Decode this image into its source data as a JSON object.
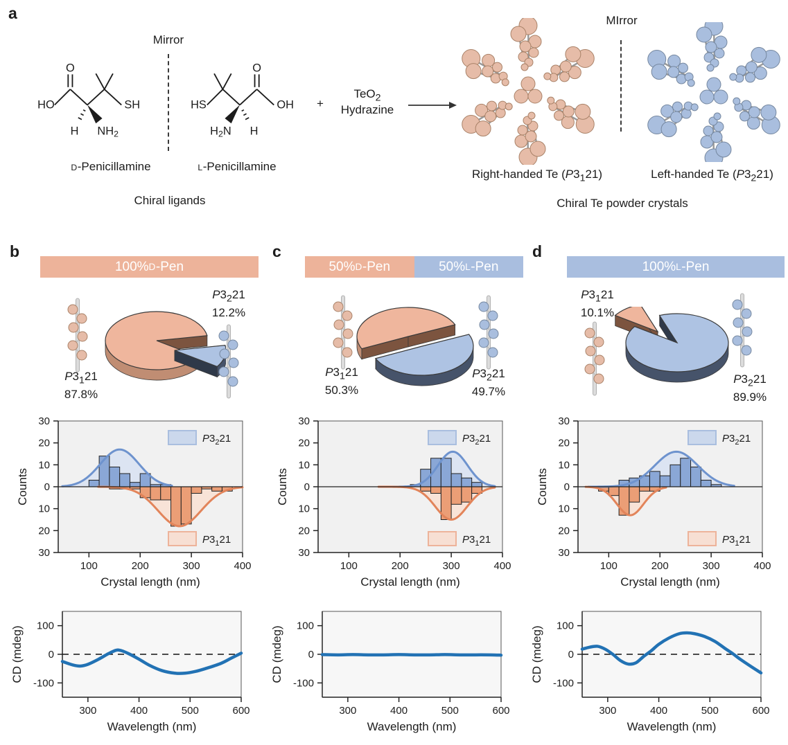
{
  "figure": {
    "colors": {
      "salmon": "#edb39a",
      "blue": "#a9bedf",
      "pie_salmon_top": "#efb69d",
      "pie_salmon_side": "#c08d73",
      "pie_salmon_wall": "#7c543f",
      "pie_blue_top": "#aec3e3",
      "pie_blue_side": "#46536a",
      "pie_blue_wall": "#2f3949",
      "hist_blue_bar": "#8aa7d6",
      "hist_blue_curve": "#6e93ce",
      "hist_blue_fill": "#dce4f2",
      "hist_orange_bar": "#eb9e76",
      "hist_orange_curve": "#e2845a",
      "hist_orange_fill": "#f8e3d7",
      "legend_blue_fill": "#cbd8ec",
      "legend_orange_fill": "#f7dfd3",
      "cd_line": "#2272b4",
      "plot_bg": "#f1f1f1",
      "cd_bg": "#f7f7f7"
    },
    "panel_a": {
      "letter": "a",
      "mirror_left": "Mirror",
      "mirror_right": "MIrror",
      "d_pen_name": {
        "sc": "D",
        "rest": "-Penicillamine"
      },
      "l_pen_name": {
        "sc": "L",
        "rest": "-Penicillamine"
      },
      "chiral_ligands": "Chiral ligands",
      "plus": "+",
      "reagent1": {
        "base": "TeO",
        "sub": "2"
      },
      "reagent2": "Hydrazine",
      "right_crystal_caption": {
        "pre": "Right-handed Te (",
        "sg_sub": "1",
        "post": ")"
      },
      "left_crystal_caption": {
        "pre": "Left-handed Te (",
        "sg_sub": "2",
        "post": ")"
      },
      "crystals_caption": "Chiral Te powder crystals",
      "d_pen_atoms": {
        "ho": "HO",
        "o": "O",
        "sh": "SH",
        "h": "H",
        "nh2_base": "NH",
        "nh2_sub": "2"
      },
      "l_pen_atoms": {
        "hs": "HS",
        "o": "O",
        "oh": "OH",
        "h": "H",
        "h2n_pre": "H",
        "h2n_sub": "2",
        "h2n_post": "N"
      }
    },
    "axes": {
      "counts": "Counts",
      "crystal_length": "Crystal length (nm)",
      "cd": "CD (mdeg)",
      "wavelength": "Wavelength (nm)"
    },
    "panels": [
      {
        "id": "b",
        "letter": "b",
        "header": [
          {
            "lead": "100% ",
            "sc": "D",
            "rest": "-Pen",
            "color": "salmon"
          }
        ],
        "pie_labels": {
          "left": {
            "sg_sub": "1",
            "pct": "87.8%"
          },
          "right": {
            "sg_sub": "2",
            "pct": "12.2%"
          }
        },
        "legend": {
          "top_sg_sub": "2",
          "bottom_sg_sub": "1"
        }
      },
      {
        "id": "c",
        "letter": "c",
        "header": [
          {
            "lead": "50% ",
            "sc": "D",
            "rest": "-Pen",
            "color": "salmon"
          },
          {
            "lead": "50% ",
            "sc": "L",
            "rest": "-Pen",
            "color": "blue"
          }
        ],
        "pie_labels": {
          "left": {
            "sg_sub": "1",
            "pct": "50.3%"
          },
          "right": {
            "sg_sub": "2",
            "pct": "49.7%"
          }
        },
        "legend": {
          "top_sg_sub": "2",
          "bottom_sg_sub": "1"
        }
      },
      {
        "id": "d",
        "letter": "d",
        "header": [
          {
            "lead": "100% ",
            "sc": "L",
            "rest": "-Pen",
            "color": "blue"
          }
        ],
        "pie_labels": {
          "left": {
            "sg_sub": "1",
            "pct": "10.1%"
          },
          "right": {
            "sg_sub": "2",
            "pct": "89.9%"
          }
        },
        "legend": {
          "top_sg_sub": "2",
          "bottom_sg_sub": "1"
        }
      }
    ]
  },
  "chart_data": [
    {
      "id": "pie-b",
      "type": "pie",
      "title": "100% D-Pen crystal handedness",
      "slices": [
        {
          "label": "P3(1)21",
          "value_pct": 87.8,
          "color": "salmon",
          "start_deg": 34,
          "end_deg": 350
        },
        {
          "label": "P3(2)21",
          "value_pct": 12.2,
          "color": "blue",
          "start_deg": -10,
          "end_deg": 34,
          "explode": [
            26,
            14
          ]
        }
      ]
    },
    {
      "id": "pie-c",
      "type": "pie",
      "title": "50% D-Pen / 50% L-Pen crystal handedness",
      "slices": [
        {
          "label": "P3(1)21",
          "value_pct": 50.3,
          "color": "salmon",
          "start_deg": 155,
          "end_deg": 336,
          "explode": [
            -9,
            -6
          ]
        },
        {
          "label": "P3(2)21",
          "value_pct": 49.7,
          "color": "blue",
          "start_deg": 336,
          "end_deg": 515,
          "explode": [
            11,
            8
          ]
        }
      ]
    },
    {
      "id": "pie-d",
      "type": "pie",
      "title": "100% L-Pen crystal handedness",
      "slices": [
        {
          "label": "P3(1)21",
          "value_pct": 10.1,
          "color": "salmon",
          "start_deg": 214,
          "end_deg": 250,
          "explode": [
            -28,
            -16
          ]
        },
        {
          "label": "P3(2)21",
          "value_pct": 89.9,
          "color": "blue",
          "start_deg": 250,
          "end_deg": 574
        }
      ]
    },
    {
      "id": "hist-b",
      "type": "histogram",
      "xlabel": "Crystal length (nm)",
      "ylabel": "Counts",
      "xlim": [
        40,
        400
      ],
      "ylim": [
        -30,
        30
      ],
      "xticks": [
        100,
        200,
        300,
        400
      ],
      "yticks": [
        30,
        20,
        10,
        0,
        10,
        20,
        30
      ],
      "series": [
        {
          "name": "P3(2)21",
          "color": "blue",
          "direction": "up",
          "bins": [
            [
              100,
              120,
              3
            ],
            [
              120,
              140,
              14
            ],
            [
              140,
              160,
              9
            ],
            [
              160,
              180,
              6
            ],
            [
              180,
              200,
              2
            ],
            [
              200,
              220,
              6
            ],
            [
              220,
              240,
              1
            ],
            [
              240,
              260,
              1
            ]
          ],
          "gauss": {
            "amp": 17,
            "mu": 160,
            "sigma": 38,
            "range": [
              48,
              262
            ]
          }
        },
        {
          "name": "P3(1)21",
          "color": "orange",
          "direction": "down",
          "bins": [
            [
              140,
              160,
              1
            ],
            [
              160,
              180,
              1
            ],
            [
              180,
              200,
              1
            ],
            [
              200,
              220,
              5
            ],
            [
              220,
              240,
              6
            ],
            [
              240,
              260,
              6
            ],
            [
              260,
              280,
              18
            ],
            [
              280,
              300,
              17
            ],
            [
              300,
              320,
              3
            ],
            [
              320,
              340,
              1
            ],
            [
              340,
              360,
              2
            ],
            [
              360,
              380,
              2
            ]
          ],
          "gauss": {
            "amp": 18,
            "mu": 277,
            "sigma": 42,
            "range": [
              118,
              400
            ]
          }
        }
      ]
    },
    {
      "id": "hist-c",
      "type": "histogram",
      "xlabel": "Crystal length (nm)",
      "ylabel": "Counts",
      "xlim": [
        40,
        400
      ],
      "ylim": [
        -30,
        30
      ],
      "xticks": [
        100,
        200,
        300,
        400
      ],
      "yticks": [
        30,
        20,
        10,
        0,
        10,
        20,
        30
      ],
      "series": [
        {
          "name": "P3(2)21",
          "color": "blue",
          "direction": "up",
          "bins": [
            [
              220,
              240,
              1
            ],
            [
              240,
              260,
              8
            ],
            [
              260,
              280,
              13
            ],
            [
              280,
              300,
              13
            ],
            [
              300,
              320,
              6
            ],
            [
              320,
              340,
              4
            ],
            [
              340,
              360,
              2
            ]
          ],
          "gauss": {
            "amp": 16,
            "mu": 303,
            "sigma": 29,
            "range": [
              185,
              385
            ]
          }
        },
        {
          "name": "P3(1)21",
          "color": "orange",
          "direction": "down",
          "bins": [
            [
              240,
              260,
              2
            ],
            [
              260,
              280,
              3
            ],
            [
              280,
              300,
              15
            ],
            [
              300,
              320,
              8
            ],
            [
              320,
              340,
              7
            ],
            [
              340,
              360,
              3
            ]
          ],
          "gauss": {
            "amp": 15,
            "mu": 300,
            "sigma": 31,
            "range": [
              158,
              385
            ]
          }
        }
      ]
    },
    {
      "id": "hist-d",
      "type": "histogram",
      "xlabel": "Crystal length (nm)",
      "ylabel": "Counts",
      "xlim": [
        40,
        400
      ],
      "ylim": [
        -30,
        30
      ],
      "xticks": [
        100,
        200,
        300,
        400
      ],
      "yticks": [
        30,
        20,
        10,
        0,
        10,
        20,
        30
      ],
      "series": [
        {
          "name": "P3(2)21",
          "color": "blue",
          "direction": "up",
          "bins": [
            [
              120,
              140,
              3
            ],
            [
              140,
              160,
              4
            ],
            [
              160,
              180,
              5
            ],
            [
              180,
              200,
              7
            ],
            [
              200,
              220,
              5
            ],
            [
              220,
              240,
              10
            ],
            [
              240,
              260,
              13
            ],
            [
              260,
              280,
              9
            ],
            [
              280,
              300,
              3
            ],
            [
              300,
              320,
              1
            ]
          ],
          "gauss": {
            "amp": 16,
            "mu": 232,
            "sigma": 42,
            "range": [
              60,
              345
            ]
          }
        },
        {
          "name": "P3(1)21",
          "color": "orange",
          "direction": "down",
          "bins": [
            [
              80,
              100,
              2
            ],
            [
              100,
              120,
              4
            ],
            [
              120,
              140,
              13
            ],
            [
              140,
              160,
              7
            ],
            [
              160,
              180,
              2
            ],
            [
              180,
              200,
              2
            ]
          ],
          "gauss": {
            "amp": 13,
            "mu": 142,
            "sigma": 26,
            "range": [
              55,
              212
            ]
          }
        }
      ]
    },
    {
      "id": "cd-b",
      "type": "line",
      "xlabel": "Wavelength (nm)",
      "ylabel": "CD (mdeg)",
      "xlim": [
        250,
        600
      ],
      "ylim": [
        -150,
        150
      ],
      "xticks": [
        300,
        400,
        500,
        600
      ],
      "yticks": [
        100,
        0,
        -100
      ],
      "zero_line": "dashed",
      "points": [
        [
          250,
          -25
        ],
        [
          270,
          -37
        ],
        [
          285,
          -41
        ],
        [
          300,
          -35
        ],
        [
          320,
          -18
        ],
        [
          340,
          2
        ],
        [
          355,
          14
        ],
        [
          365,
          13
        ],
        [
          380,
          2
        ],
        [
          400,
          -17
        ],
        [
          420,
          -38
        ],
        [
          445,
          -57
        ],
        [
          470,
          -66
        ],
        [
          490,
          -66
        ],
        [
          510,
          -60
        ],
        [
          530,
          -50
        ],
        [
          560,
          -32
        ],
        [
          580,
          -14
        ],
        [
          600,
          4
        ]
      ]
    },
    {
      "id": "cd-c",
      "type": "line",
      "xlabel": "Wavelength (nm)",
      "ylabel": "CD (mdeg)",
      "xlim": [
        250,
        600
      ],
      "ylim": [
        -150,
        150
      ],
      "xticks": [
        300,
        400,
        500,
        600
      ],
      "yticks": [
        100,
        0,
        -100
      ],
      "zero_line": "dashed",
      "points": [
        [
          250,
          -1
        ],
        [
          280,
          -2
        ],
        [
          310,
          -1
        ],
        [
          340,
          -2
        ],
        [
          370,
          -2
        ],
        [
          400,
          -1
        ],
        [
          430,
          -2
        ],
        [
          460,
          -2
        ],
        [
          490,
          -1
        ],
        [
          520,
          -2
        ],
        [
          550,
          -2
        ],
        [
          580,
          -2
        ],
        [
          600,
          -3
        ]
      ]
    },
    {
      "id": "cd-d",
      "type": "line",
      "xlabel": "Wavelength (nm)",
      "ylabel": "CD (mdeg)",
      "xlim": [
        250,
        600
      ],
      "ylim": [
        -150,
        150
      ],
      "xticks": [
        300,
        400,
        500,
        600
      ],
      "yticks": [
        100,
        0,
        -100
      ],
      "zero_line": "dashed",
      "points": [
        [
          250,
          18
        ],
        [
          265,
          25
        ],
        [
          280,
          28
        ],
        [
          295,
          18
        ],
        [
          310,
          0
        ],
        [
          325,
          -22
        ],
        [
          340,
          -34
        ],
        [
          355,
          -30
        ],
        [
          370,
          -8
        ],
        [
          385,
          12
        ],
        [
          400,
          35
        ],
        [
          420,
          57
        ],
        [
          440,
          72
        ],
        [
          455,
          75
        ],
        [
          470,
          72
        ],
        [
          490,
          62
        ],
        [
          510,
          45
        ],
        [
          530,
          20
        ],
        [
          545,
          2
        ],
        [
          560,
          -18
        ],
        [
          580,
          -42
        ],
        [
          600,
          -65
        ]
      ]
    }
  ]
}
